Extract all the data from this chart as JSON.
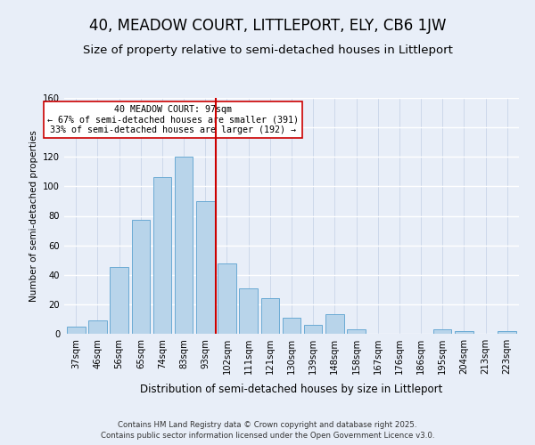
{
  "title": "40, MEADOW COURT, LITTLEPORT, ELY, CB6 1JW",
  "subtitle": "Size of property relative to semi-detached houses in Littleport",
  "xlabel": "Distribution of semi-detached houses by size in Littleport",
  "ylabel": "Number of semi-detached properties",
  "bar_labels": [
    "37sqm",
    "46sqm",
    "56sqm",
    "65sqm",
    "74sqm",
    "83sqm",
    "93sqm",
    "102sqm",
    "111sqm",
    "121sqm",
    "130sqm",
    "139sqm",
    "148sqm",
    "158sqm",
    "167sqm",
    "176sqm",
    "186sqm",
    "195sqm",
    "204sqm",
    "213sqm",
    "223sqm"
  ],
  "bar_values": [
    5,
    9,
    45,
    77,
    106,
    120,
    90,
    48,
    31,
    24,
    11,
    6,
    13,
    3,
    0,
    0,
    0,
    3,
    2,
    0,
    2
  ],
  "bar_color": "#b8d4ea",
  "bar_edge_color": "#6aaad4",
  "vline_x": 6.5,
  "vline_color": "#cc0000",
  "ylim": [
    0,
    160
  ],
  "annotation_title": "40 MEADOW COURT: 97sqm",
  "annotation_line1": "← 67% of semi-detached houses are smaller (391)",
  "annotation_line2": "33% of semi-detached houses are larger (192) →",
  "annotation_box_color": "#ffffff",
  "annotation_box_edge": "#cc0000",
  "footer1": "Contains HM Land Registry data © Crown copyright and database right 2025.",
  "footer2": "Contains public sector information licensed under the Open Government Licence v3.0.",
  "background_color": "#e8eef8",
  "title_fontsize": 12,
  "subtitle_fontsize": 9.5
}
